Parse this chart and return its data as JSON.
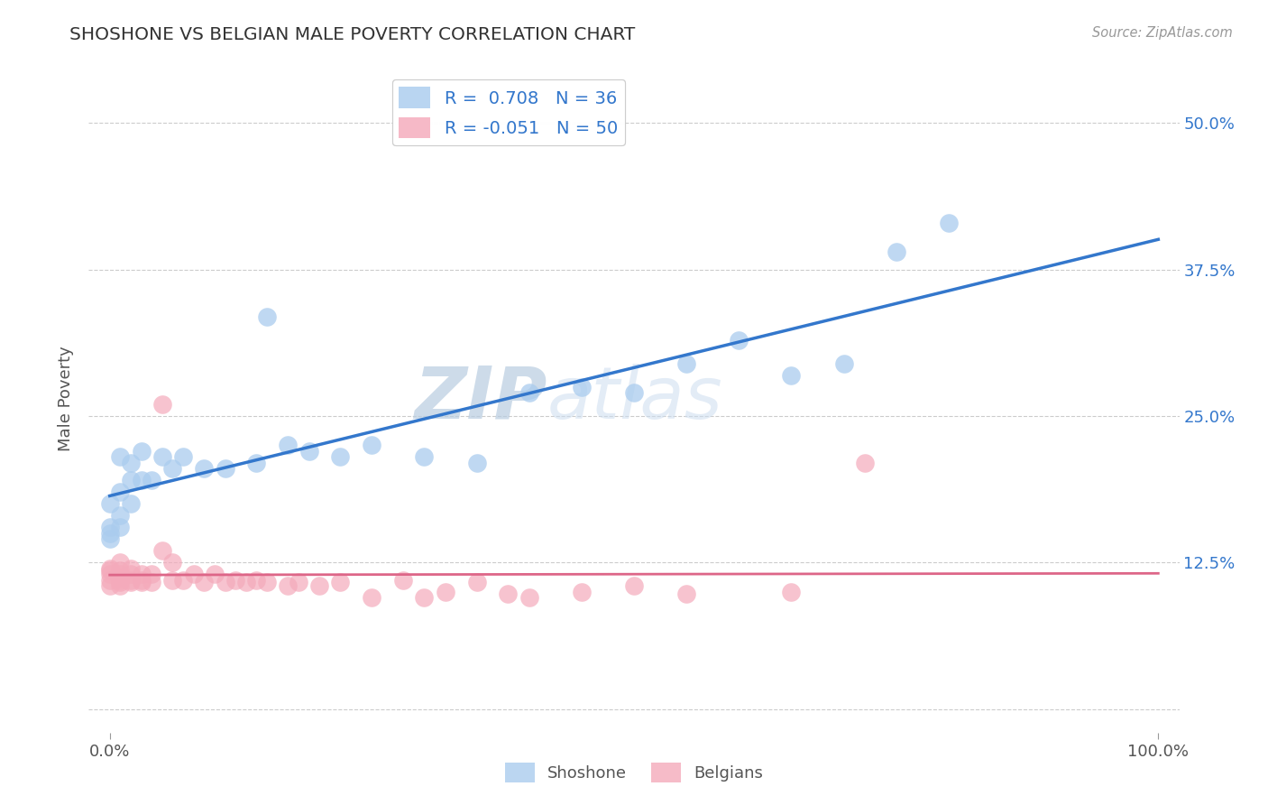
{
  "title": "SHOSHONE VS BELGIAN MALE POVERTY CORRELATION CHART",
  "source": "Source: ZipAtlas.com",
  "ylabel": "Male Poverty",
  "watermark_zip": "ZIP",
  "watermark_atlas": "atlas",
  "shoshone_R": 0.708,
  "shoshone_N": 36,
  "belgian_R": -0.051,
  "belgian_N": 50,
  "shoshone_color": "#aaccee",
  "belgian_color": "#f4aabb",
  "shoshone_line_color": "#3377cc",
  "belgian_line_color": "#dd6688",
  "shoshone_x": [
    0.0,
    0.0,
    0.0,
    0.0,
    0.01,
    0.01,
    0.01,
    0.01,
    0.02,
    0.02,
    0.02,
    0.03,
    0.03,
    0.04,
    0.05,
    0.06,
    0.07,
    0.09,
    0.11,
    0.14,
    0.15,
    0.17,
    0.19,
    0.22,
    0.25,
    0.3,
    0.35,
    0.4,
    0.45,
    0.5,
    0.55,
    0.6,
    0.65,
    0.7,
    0.75,
    0.8
  ],
  "shoshone_y": [
    0.145,
    0.15,
    0.155,
    0.175,
    0.155,
    0.165,
    0.185,
    0.215,
    0.175,
    0.195,
    0.21,
    0.195,
    0.22,
    0.195,
    0.215,
    0.205,
    0.215,
    0.205,
    0.205,
    0.21,
    0.335,
    0.225,
    0.22,
    0.215,
    0.225,
    0.215,
    0.21,
    0.27,
    0.275,
    0.27,
    0.295,
    0.315,
    0.285,
    0.295,
    0.39,
    0.415
  ],
  "belgian_x": [
    0.0,
    0.0,
    0.0,
    0.0,
    0.0,
    0.01,
    0.01,
    0.01,
    0.01,
    0.01,
    0.01,
    0.01,
    0.02,
    0.02,
    0.02,
    0.02,
    0.03,
    0.03,
    0.03,
    0.04,
    0.04,
    0.05,
    0.05,
    0.06,
    0.06,
    0.07,
    0.08,
    0.09,
    0.1,
    0.11,
    0.12,
    0.13,
    0.14,
    0.15,
    0.17,
    0.18,
    0.2,
    0.22,
    0.25,
    0.28,
    0.3,
    0.32,
    0.35,
    0.38,
    0.4,
    0.45,
    0.5,
    0.55,
    0.65,
    0.72
  ],
  "belgian_y": [
    0.105,
    0.11,
    0.115,
    0.118,
    0.12,
    0.105,
    0.108,
    0.11,
    0.112,
    0.115,
    0.118,
    0.125,
    0.108,
    0.11,
    0.115,
    0.12,
    0.108,
    0.11,
    0.115,
    0.108,
    0.115,
    0.26,
    0.135,
    0.11,
    0.125,
    0.11,
    0.115,
    0.108,
    0.115,
    0.108,
    0.11,
    0.108,
    0.11,
    0.108,
    0.105,
    0.108,
    0.105,
    0.108,
    0.095,
    0.11,
    0.095,
    0.1,
    0.108,
    0.098,
    0.095,
    0.1,
    0.105,
    0.098,
    0.1,
    0.21
  ],
  "y_ticks": [
    0.0,
    0.125,
    0.25,
    0.375,
    0.5
  ],
  "y_tick_labels": [
    "",
    "12.5%",
    "25.0%",
    "37.5%",
    "50.0%"
  ],
  "x_tick_labels": [
    "0.0%",
    "100.0%"
  ],
  "xlim": [
    -0.02,
    1.02
  ],
  "ylim": [
    -0.02,
    0.55
  ],
  "background_color": "#ffffff",
  "grid_color": "#cccccc"
}
